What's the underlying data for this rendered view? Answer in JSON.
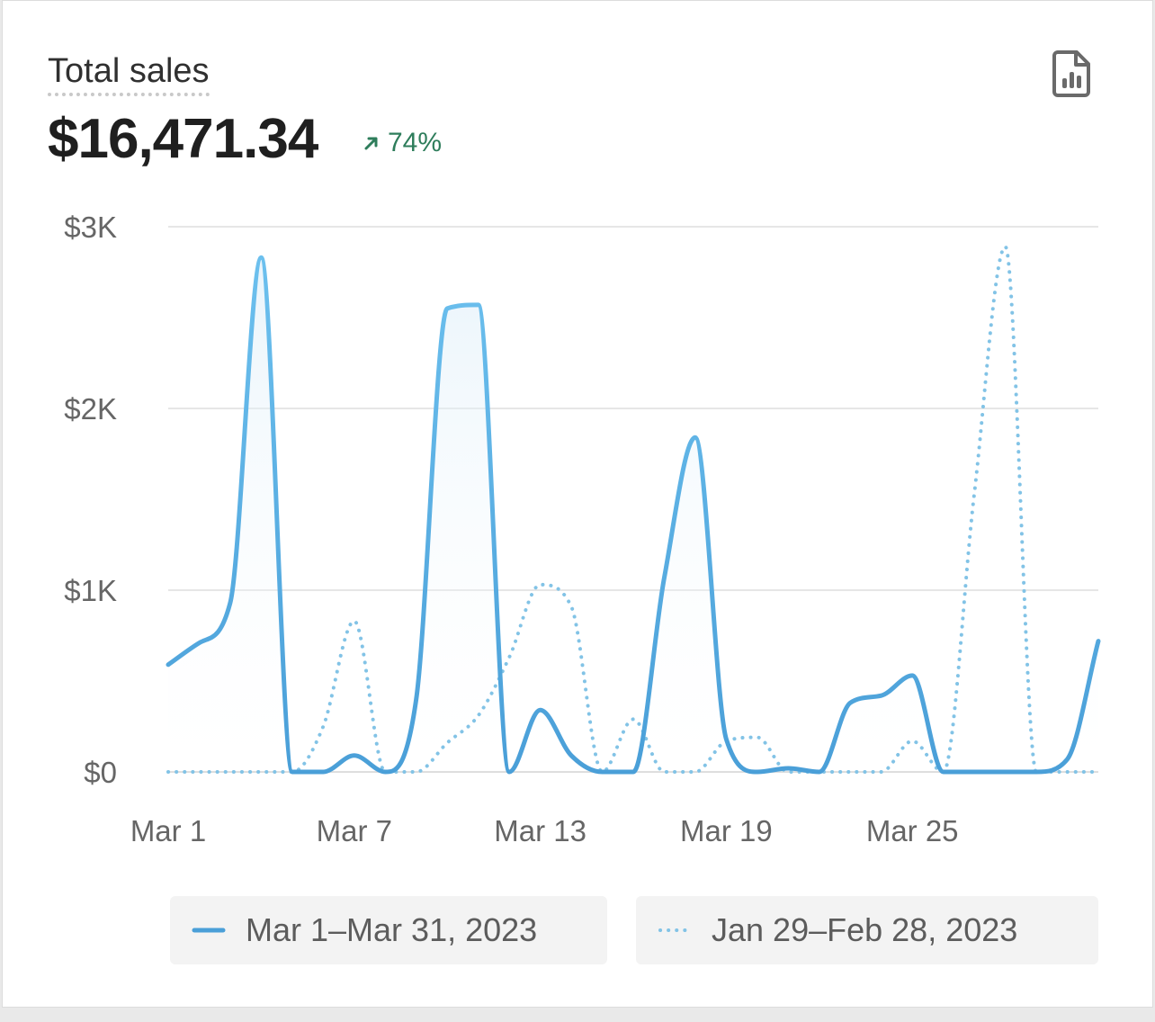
{
  "card": {
    "title": "Total sales",
    "total": "$16,471.34",
    "change": "74%",
    "report_icon": "report-chart-icon"
  },
  "colors": {
    "current": "#4a9fd8",
    "current_light": "#6cc0ee",
    "previous": "#82c3e6",
    "positive": "#2e7d5b",
    "grid": "#e6e6e6"
  },
  "chart_data": {
    "type": "line",
    "title": "",
    "xlabel": "",
    "ylabel": "",
    "ylim": [
      0,
      3000
    ],
    "yticks": [
      "$0",
      "$1K",
      "$2K",
      "$3K"
    ],
    "ytick_values": [
      0,
      1000,
      2000,
      3000
    ],
    "xticks": [
      "Mar 1",
      "Mar 7",
      "Mar 13",
      "Mar 19",
      "Mar 25"
    ],
    "xtick_days": [
      1,
      7,
      13,
      19,
      25
    ],
    "x": [
      1,
      2,
      3,
      4,
      5,
      6,
      7,
      8,
      9,
      10,
      11,
      12,
      13,
      14,
      15,
      16,
      17,
      18,
      19,
      20,
      21,
      22,
      23,
      24,
      25,
      26,
      27,
      28,
      29,
      30,
      31
    ],
    "grid": true,
    "legend_position": "bottom",
    "series": [
      {
        "name": "Mar 1–Mar 31, 2023",
        "style": "solid",
        "values": [
          590,
          710,
          930,
          2830,
          0,
          0,
          90,
          0,
          400,
          2550,
          2570,
          0,
          340,
          90,
          0,
          0,
          1070,
          1840,
          180,
          0,
          20,
          0,
          380,
          420,
          530,
          0,
          0,
          0,
          0,
          70,
          720
        ]
      },
      {
        "name": "Jan 29–Feb 28, 2023",
        "style": "dotted",
        "values": [
          0,
          0,
          0,
          0,
          0,
          250,
          830,
          0,
          0,
          160,
          310,
          630,
          1030,
          910,
          0,
          290,
          0,
          0,
          170,
          190,
          0,
          0,
          0,
          0,
          170,
          0,
          1530,
          2890,
          0,
          0,
          0
        ]
      }
    ]
  }
}
